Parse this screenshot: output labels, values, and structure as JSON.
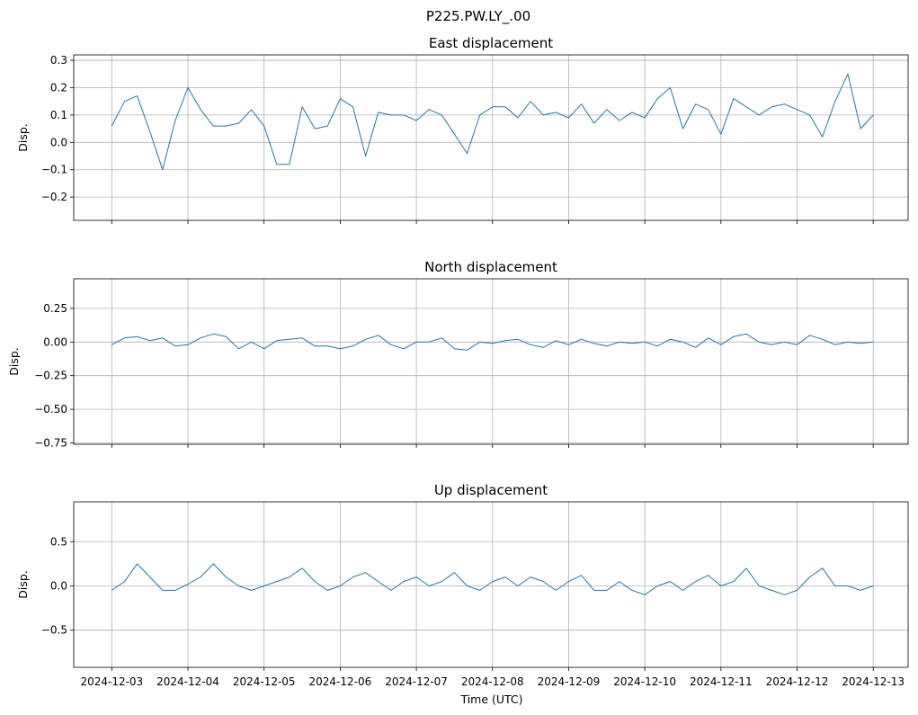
{
  "chart_data": {
    "type": "line",
    "title": "P225.PW.LY_.00",
    "xlabel": "Time (UTC)",
    "x_ticks": [
      "2024-12-03",
      "2024-12-04",
      "2024-12-05",
      "2024-12-06",
      "2024-12-07",
      "2024-12-08",
      "2024-12-09",
      "2024-12-10",
      "2024-12-11",
      "2024-12-12",
      "2024-12-13"
    ],
    "x_range": [
      "2024-12-02T12:00",
      "2024-12-13T11:00"
    ],
    "grid": true,
    "line_color": "#1f77b4",
    "panels": [
      {
        "title": "East displacement",
        "ylabel": "Disp.",
        "ylim": [
          -0.285,
          0.32
        ],
        "yticks": [
          -0.2,
          -0.1,
          0.0,
          0.1,
          0.2,
          0.3
        ],
        "ytick_labels": [
          "−0.2",
          "−0.1",
          "0.0",
          "0.1",
          "0.2",
          "0.3"
        ],
        "series": [
          {
            "x": [
              "2024-12-03T00:00",
              "2024-12-03T04:00",
              "2024-12-03T08:00",
              "2024-12-03T12:00",
              "2024-12-03T16:00",
              "2024-12-03T20:00",
              "2024-12-04T00:00",
              "2024-12-04T04:00",
              "2024-12-04T08:00",
              "2024-12-04T12:00",
              "2024-12-04T16:00",
              "2024-12-04T20:00",
              "2024-12-05T00:00",
              "2024-12-05T04:00",
              "2024-12-05T08:00",
              "2024-12-05T12:00",
              "2024-12-05T16:00",
              "2024-12-05T20:00",
              "2024-12-06T00:00",
              "2024-12-06T04:00",
              "2024-12-06T08:00",
              "2024-12-06T12:00",
              "2024-12-06T16:00",
              "2024-12-06T20:00",
              "2024-12-07T00:00",
              "2024-12-07T04:00",
              "2024-12-07T08:00",
              "2024-12-07T12:00",
              "2024-12-07T16:00",
              "2024-12-07T20:00",
              "2024-12-08T00:00",
              "2024-12-08T04:00",
              "2024-12-08T08:00",
              "2024-12-08T12:00",
              "2024-12-08T16:00",
              "2024-12-08T20:00",
              "2024-12-09T00:00",
              "2024-12-09T04:00",
              "2024-12-09T08:00",
              "2024-12-09T12:00",
              "2024-12-09T16:00",
              "2024-12-09T20:00",
              "2024-12-10T00:00",
              "2024-12-10T04:00",
              "2024-12-10T08:00",
              "2024-12-10T12:00",
              "2024-12-10T16:00",
              "2024-12-10T20:00",
              "2024-12-11T00:00",
              "2024-12-11T04:00",
              "2024-12-11T08:00",
              "2024-12-11T12:00",
              "2024-12-11T16:00",
              "2024-12-11T20:00",
              "2024-12-12T00:00",
              "2024-12-12T04:00",
              "2024-12-12T08:00",
              "2024-12-12T12:00",
              "2024-12-12T16:00",
              "2024-12-12T20:00",
              "2024-12-13T00:00"
            ],
            "y": [
              0.06,
              0.15,
              0.17,
              0.04,
              -0.1,
              0.08,
              0.2,
              0.12,
              0.06,
              0.06,
              0.07,
              0.12,
              0.06,
              -0.08,
              -0.08,
              0.13,
              0.05,
              0.06,
              0.16,
              0.13,
              -0.05,
              0.11,
              0.1,
              0.1,
              0.08,
              0.12,
              0.1,
              0.03,
              -0.04,
              0.1,
              0.13,
              0.13,
              0.09,
              0.15,
              0.1,
              0.11,
              0.09,
              0.14,
              0.07,
              0.12,
              0.08,
              0.11,
              0.09,
              0.16,
              0.2,
              0.05,
              0.14,
              0.12,
              0.03,
              0.16,
              0.13,
              0.1,
              0.13,
              0.14,
              0.12,
              0.1,
              0.02,
              0.15,
              0.25,
              0.05,
              0.1
            ]
          }
        ]
      },
      {
        "title": "North displacement",
        "ylabel": "Disp.",
        "ylim": [
          -0.76,
          0.47
        ],
        "yticks": [
          -0.75,
          -0.5,
          -0.25,
          0.0,
          0.25
        ],
        "ytick_labels": [
          "−0.75",
          "−0.50",
          "−0.25",
          "0.00",
          "0.25"
        ],
        "series": [
          {
            "x": [
              "2024-12-03T00:00",
              "2024-12-03T04:00",
              "2024-12-03T08:00",
              "2024-12-03T12:00",
              "2024-12-03T16:00",
              "2024-12-03T20:00",
              "2024-12-04T00:00",
              "2024-12-04T04:00",
              "2024-12-04T08:00",
              "2024-12-04T12:00",
              "2024-12-04T16:00",
              "2024-12-04T20:00",
              "2024-12-05T00:00",
              "2024-12-05T04:00",
              "2024-12-05T08:00",
              "2024-12-05T12:00",
              "2024-12-05T16:00",
              "2024-12-05T20:00",
              "2024-12-06T00:00",
              "2024-12-06T04:00",
              "2024-12-06T08:00",
              "2024-12-06T12:00",
              "2024-12-06T16:00",
              "2024-12-06T20:00",
              "2024-12-07T00:00",
              "2024-12-07T04:00",
              "2024-12-07T08:00",
              "2024-12-07T12:00",
              "2024-12-07T16:00",
              "2024-12-07T20:00",
              "2024-12-08T00:00",
              "2024-12-08T04:00",
              "2024-12-08T08:00",
              "2024-12-08T12:00",
              "2024-12-08T16:00",
              "2024-12-08T20:00",
              "2024-12-09T00:00",
              "2024-12-09T04:00",
              "2024-12-09T08:00",
              "2024-12-09T12:00",
              "2024-12-09T16:00",
              "2024-12-09T20:00",
              "2024-12-10T00:00",
              "2024-12-10T04:00",
              "2024-12-10T08:00",
              "2024-12-10T12:00",
              "2024-12-10T16:00",
              "2024-12-10T20:00",
              "2024-12-11T00:00",
              "2024-12-11T04:00",
              "2024-12-11T08:00",
              "2024-12-11T12:00",
              "2024-12-11T16:00",
              "2024-12-11T20:00",
              "2024-12-12T00:00",
              "2024-12-12T04:00",
              "2024-12-12T08:00",
              "2024-12-12T12:00",
              "2024-12-12T16:00",
              "2024-12-12T20:00",
              "2024-12-13T00:00"
            ],
            "y": [
              -0.02,
              0.03,
              0.04,
              0.01,
              0.03,
              -0.03,
              -0.02,
              0.03,
              0.06,
              0.04,
              -0.05,
              0.0,
              -0.05,
              0.01,
              0.02,
              0.03,
              -0.03,
              -0.03,
              -0.05,
              -0.03,
              0.02,
              0.05,
              -0.02,
              -0.05,
              0.0,
              0.0,
              0.03,
              -0.05,
              -0.06,
              0.0,
              -0.01,
              0.01,
              0.02,
              -0.02,
              -0.04,
              0.01,
              -0.02,
              0.02,
              -0.01,
              -0.03,
              0.0,
              -0.01,
              0.0,
              -0.03,
              0.02,
              0.0,
              -0.04,
              0.03,
              -0.02,
              0.04,
              0.06,
              0.0,
              -0.02,
              0.0,
              -0.02,
              0.05,
              0.02,
              -0.02,
              0.0,
              -0.01,
              0.0
            ]
          }
        ]
      },
      {
        "title": "Up displacement",
        "ylabel": "Disp.",
        "ylim": [
          -0.92,
          0.95
        ],
        "yticks": [
          -0.5,
          0.0,
          0.5
        ],
        "ytick_labels": [
          "−0.5",
          "0.0",
          "0.5"
        ],
        "series": [
          {
            "x": [
              "2024-12-03T00:00",
              "2024-12-03T04:00",
              "2024-12-03T08:00",
              "2024-12-03T12:00",
              "2024-12-03T16:00",
              "2024-12-03T20:00",
              "2024-12-04T00:00",
              "2024-12-04T04:00",
              "2024-12-04T08:00",
              "2024-12-04T12:00",
              "2024-12-04T16:00",
              "2024-12-04T20:00",
              "2024-12-05T00:00",
              "2024-12-05T04:00",
              "2024-12-05T08:00",
              "2024-12-05T12:00",
              "2024-12-05T16:00",
              "2024-12-05T20:00",
              "2024-12-06T00:00",
              "2024-12-06T04:00",
              "2024-12-06T08:00",
              "2024-12-06T12:00",
              "2024-12-06T16:00",
              "2024-12-06T20:00",
              "2024-12-07T00:00",
              "2024-12-07T04:00",
              "2024-12-07T08:00",
              "2024-12-07T12:00",
              "2024-12-07T16:00",
              "2024-12-07T20:00",
              "2024-12-08T00:00",
              "2024-12-08T04:00",
              "2024-12-08T08:00",
              "2024-12-08T12:00",
              "2024-12-08T16:00",
              "2024-12-08T20:00",
              "2024-12-09T00:00",
              "2024-12-09T04:00",
              "2024-12-09T08:00",
              "2024-12-09T12:00",
              "2024-12-09T16:00",
              "2024-12-09T20:00",
              "2024-12-10T00:00",
              "2024-12-10T04:00",
              "2024-12-10T08:00",
              "2024-12-10T12:00",
              "2024-12-10T16:00",
              "2024-12-10T20:00",
              "2024-12-11T00:00",
              "2024-12-11T04:00",
              "2024-12-11T08:00",
              "2024-12-11T12:00",
              "2024-12-11T16:00",
              "2024-12-11T20:00",
              "2024-12-12T00:00",
              "2024-12-12T04:00",
              "2024-12-12T08:00",
              "2024-12-12T12:00",
              "2024-12-12T16:00",
              "2024-12-12T20:00",
              "2024-12-13T00:00"
            ],
            "y": [
              -0.05,
              0.05,
              0.25,
              0.1,
              -0.05,
              -0.05,
              0.02,
              0.1,
              0.25,
              0.1,
              0.0,
              -0.05,
              0.0,
              0.05,
              0.1,
              0.2,
              0.05,
              -0.05,
              0.0,
              0.1,
              0.15,
              0.05,
              -0.05,
              0.05,
              0.1,
              0.0,
              0.05,
              0.15,
              0.0,
              -0.05,
              0.05,
              0.1,
              0.0,
              0.1,
              0.05,
              -0.05,
              0.05,
              0.12,
              -0.05,
              -0.05,
              0.05,
              -0.05,
              -0.1,
              0.0,
              0.05,
              -0.05,
              0.05,
              0.12,
              0.0,
              0.05,
              0.2,
              0.0,
              -0.05,
              -0.1,
              -0.05,
              0.1,
              0.2,
              0.0,
              0.0,
              -0.05,
              0.0
            ]
          }
        ]
      }
    ]
  }
}
